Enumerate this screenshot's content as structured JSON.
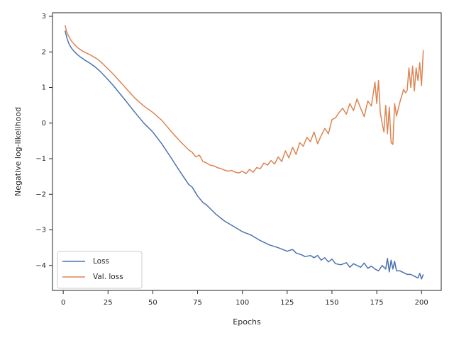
{
  "chart_data": {
    "type": "line",
    "title": "",
    "xlabel": "Epochs",
    "ylabel": "Negative log-likelihood",
    "xlim": [
      -6,
      211
    ],
    "ylim": [
      -4.7,
      3.1
    ],
    "xticks": [
      0,
      25,
      50,
      75,
      100,
      125,
      150,
      175,
      200
    ],
    "yticks": [
      -4,
      -3,
      -2,
      -1,
      0,
      1,
      2,
      3
    ],
    "grid": false,
    "legend_position": "lower-left",
    "series": [
      {
        "name": "Loss",
        "color": "#4c72b0",
        "x": [
          1,
          2,
          3,
          4,
          5,
          6,
          8,
          10,
          12,
          15,
          18,
          20,
          22,
          25,
          28,
          30,
          35,
          40,
          45,
          50,
          55,
          60,
          65,
          70,
          72,
          75,
          78,
          80,
          85,
          90,
          95,
          100,
          105,
          110,
          115,
          120,
          125,
          128,
          130,
          133,
          135,
          138,
          140,
          142,
          144,
          146,
          148,
          150,
          152,
          155,
          158,
          160,
          162,
          164,
          166,
          168,
          170,
          172,
          174,
          176,
          178,
          180,
          181,
          182,
          183,
          184,
          185,
          186,
          188,
          190,
          192,
          194,
          196,
          198,
          199,
          200,
          201
        ],
        "values": [
          2.6,
          2.4,
          2.25,
          2.15,
          2.08,
          2.02,
          1.92,
          1.84,
          1.77,
          1.68,
          1.57,
          1.48,
          1.38,
          1.22,
          1.05,
          0.93,
          0.62,
          0.3,
          0.0,
          -0.25,
          -0.58,
          -0.96,
          -1.35,
          -1.72,
          -1.8,
          -2.05,
          -2.23,
          -2.3,
          -2.55,
          -2.75,
          -2.9,
          -3.05,
          -3.15,
          -3.3,
          -3.42,
          -3.5,
          -3.6,
          -3.55,
          -3.65,
          -3.7,
          -3.75,
          -3.72,
          -3.78,
          -3.72,
          -3.85,
          -3.78,
          -3.9,
          -3.82,
          -3.95,
          -3.98,
          -3.92,
          -4.05,
          -3.95,
          -4.0,
          -4.05,
          -3.93,
          -4.08,
          -4.02,
          -4.1,
          -4.15,
          -4.0,
          -4.1,
          -3.8,
          -4.18,
          -3.85,
          -4.1,
          -3.88,
          -4.15,
          -4.15,
          -4.2,
          -4.25,
          -4.25,
          -4.3,
          -4.35,
          -4.22,
          -4.38,
          -4.25
        ]
      },
      {
        "name": "Val. loss",
        "color": "#dd8452",
        "x": [
          1,
          2,
          3,
          4,
          5,
          6,
          8,
          10,
          12,
          15,
          18,
          20,
          22,
          25,
          28,
          30,
          35,
          40,
          45,
          50,
          55,
          60,
          65,
          70,
          72,
          74,
          76,
          78,
          80,
          82,
          84,
          86,
          88,
          90,
          92,
          94,
          96,
          98,
          100,
          102,
          104,
          106,
          108,
          110,
          112,
          114,
          116,
          118,
          120,
          122,
          124,
          126,
          128,
          130,
          132,
          134,
          136,
          138,
          140,
          142,
          144,
          146,
          148,
          150,
          152,
          154,
          156,
          158,
          160,
          162,
          164,
          166,
          168,
          170,
          172,
          174,
          175,
          176,
          177,
          178,
          179,
          180,
          181,
          182,
          183,
          184,
          185,
          186,
          188,
          190,
          191,
          192,
          193,
          194,
          195,
          196,
          197,
          198,
          199,
          200,
          201
        ],
        "values": [
          2.75,
          2.55,
          2.45,
          2.35,
          2.28,
          2.22,
          2.12,
          2.05,
          1.99,
          1.92,
          1.83,
          1.76,
          1.67,
          1.52,
          1.37,
          1.26,
          0.98,
          0.7,
          0.48,
          0.3,
          0.08,
          -0.22,
          -0.5,
          -0.75,
          -0.82,
          -0.95,
          -0.9,
          -1.08,
          -1.12,
          -1.18,
          -1.2,
          -1.25,
          -1.28,
          -1.32,
          -1.35,
          -1.33,
          -1.38,
          -1.4,
          -1.35,
          -1.42,
          -1.3,
          -1.38,
          -1.25,
          -1.28,
          -1.12,
          -1.18,
          -1.05,
          -1.15,
          -0.95,
          -1.08,
          -0.78,
          -0.98,
          -0.68,
          -0.88,
          -0.55,
          -0.65,
          -0.4,
          -0.52,
          -0.25,
          -0.58,
          -0.35,
          -0.15,
          -0.3,
          0.1,
          0.15,
          0.3,
          0.42,
          0.25,
          0.55,
          0.35,
          0.68,
          0.42,
          0.18,
          0.62,
          0.48,
          1.15,
          0.55,
          1.2,
          0.3,
          0.0,
          -0.25,
          0.5,
          -0.3,
          0.45,
          -0.55,
          -0.6,
          0.55,
          0.2,
          0.6,
          0.95,
          0.85,
          0.92,
          1.55,
          1.0,
          1.6,
          0.9,
          1.55,
          1.2,
          1.7,
          1.05,
          2.05
        ]
      }
    ]
  }
}
